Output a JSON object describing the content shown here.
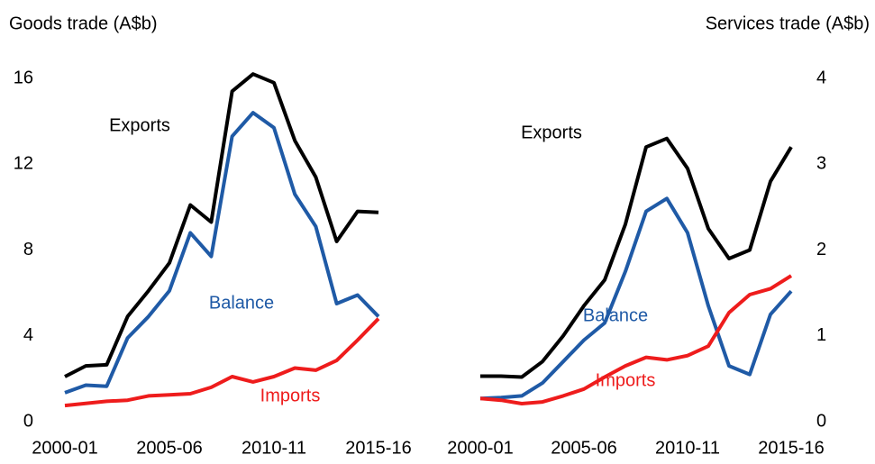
{
  "chart_data": [
    {
      "type": "line",
      "title": "Goods trade (A$b)",
      "axis_side": "left",
      "categories": [
        "2000-01",
        null,
        null,
        null,
        null,
        "2005-06",
        null,
        null,
        null,
        null,
        "2010-11",
        null,
        null,
        null,
        null,
        "2015-16"
      ],
      "series": [
        {
          "name": "Exports",
          "color": "#000000",
          "values": [
            2.1,
            2.6,
            2.65,
            4.9,
            6.1,
            7.4,
            10.1,
            9.3,
            15.4,
            16.2,
            15.8,
            13.1,
            11.4,
            8.4,
            9.8,
            9.75
          ]
        },
        {
          "name": "Balance",
          "color": "#1f5aa6",
          "values": [
            1.35,
            1.7,
            1.65,
            3.9,
            4.9,
            6.1,
            8.8,
            7.7,
            13.3,
            14.4,
            13.7,
            10.6,
            9.1,
            5.5,
            5.9,
            4.9
          ]
        },
        {
          "name": "Imports",
          "color": "#ee1c1c",
          "values": [
            0.75,
            0.85,
            0.95,
            1.0,
            1.2,
            1.25,
            1.3,
            1.6,
            2.1,
            1.85,
            2.1,
            2.5,
            2.4,
            2.85,
            3.8,
            4.8
          ]
        }
      ],
      "ylim": [
        0,
        16
      ],
      "yticks": [
        0,
        4,
        8,
        12,
        16
      ]
    },
    {
      "type": "line",
      "title": "Services trade (A$b)",
      "axis_side": "right",
      "categories": [
        "2000-01",
        null,
        null,
        null,
        null,
        "2005-06",
        null,
        null,
        null,
        null,
        "2010-11",
        null,
        null,
        null,
        null,
        "2015-16"
      ],
      "series": [
        {
          "name": "Exports",
          "color": "#000000",
          "values": [
            0.53,
            0.53,
            0.52,
            0.7,
            1.0,
            1.35,
            1.65,
            2.3,
            3.2,
            3.3,
            2.95,
            2.25,
            1.9,
            2.0,
            2.8,
            3.2
          ]
        },
        {
          "name": "Balance",
          "color": "#1f5aa6",
          "values": [
            0.27,
            0.28,
            0.3,
            0.45,
            0.7,
            0.95,
            1.15,
            1.75,
            2.45,
            2.6,
            2.2,
            1.35,
            0.65,
            0.55,
            1.25,
            1.52
          ]
        },
        {
          "name": "Imports",
          "color": "#ee1c1c",
          "values": [
            0.27,
            0.25,
            0.21,
            0.23,
            0.3,
            0.38,
            0.52,
            0.65,
            0.75,
            0.72,
            0.77,
            0.88,
            1.27,
            1.48,
            1.55,
            1.7
          ]
        }
      ],
      "ylim": [
        0,
        4
      ],
      "yticks": [
        0,
        1,
        2,
        3,
        4
      ]
    }
  ]
}
